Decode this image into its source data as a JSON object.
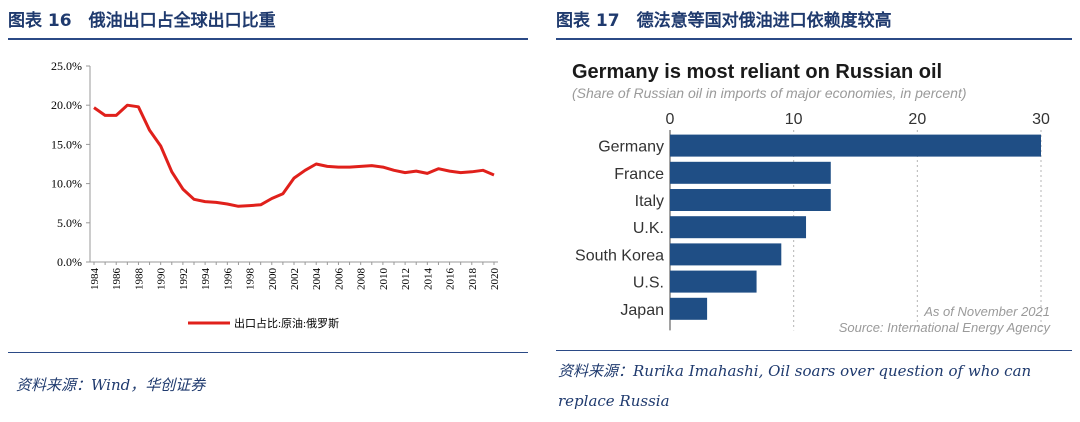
{
  "left_panel": {
    "title": "图表 16　俄油出口占全球出口比重",
    "source": "资料来源：Wind，华创证券"
  },
  "right_panel": {
    "title": "图表 17　德法意等国对俄油进口依赖度较高",
    "source_line1": "资料来源：Rurika Imahashi, Oil soars over question of who can",
    "source_line2": "replace Russia"
  },
  "colors": {
    "line": "#e0201b",
    "bar": "#1f4e85",
    "title": "#1f3a6e",
    "rule": "#2b4a86"
  },
  "chart_data": [
    {
      "type": "line",
      "title": "",
      "x": [
        "1984",
        "1985",
        "1986",
        "1987",
        "1988",
        "1989",
        "1990",
        "1991",
        "1992",
        "1993",
        "1994",
        "1995",
        "1996",
        "1997",
        "1998",
        "1999",
        "2000",
        "2001",
        "2002",
        "2003",
        "2004",
        "2005",
        "2006",
        "2007",
        "2008",
        "2009",
        "2010",
        "2011",
        "2012",
        "2013",
        "2014",
        "2015",
        "2016",
        "2017",
        "2018",
        "2019",
        "2020"
      ],
      "xticks": [
        "1984",
        "1986",
        "1988",
        "1990",
        "1992",
        "1994",
        "1996",
        "1998",
        "2000",
        "2002",
        "2004",
        "2006",
        "2008",
        "2010",
        "2012",
        "2014",
        "2016",
        "2018",
        "2020"
      ],
      "yticks": [
        "0.0%",
        "5.0%",
        "10.0%",
        "15.0%",
        "20.0%",
        "25.0%"
      ],
      "ylim": [
        0,
        25
      ],
      "series": [
        {
          "name": "出口占比:原油:俄罗斯",
          "values": [
            19.7,
            18.7,
            18.7,
            20.0,
            19.8,
            16.8,
            14.8,
            11.5,
            9.3,
            8.0,
            7.7,
            7.6,
            7.4,
            7.1,
            7.2,
            7.3,
            8.1,
            8.7,
            10.7,
            11.7,
            12.5,
            12.2,
            12.1,
            12.1,
            12.2,
            12.3,
            12.1,
            11.7,
            11.4,
            11.6,
            11.3,
            11.9,
            11.6,
            11.4,
            11.5,
            11.7,
            11.1
          ]
        }
      ]
    },
    {
      "type": "bar",
      "orientation": "horizontal",
      "title": "Germany is most reliant on Russian oil",
      "subtitle": "(Share of Russian oil in imports of major economies, in percent)",
      "categories": [
        "Germany",
        "France",
        "Italy",
        "U.K.",
        "South Korea",
        "U.S.",
        "Japan"
      ],
      "values": [
        30,
        13,
        13,
        11,
        9,
        7,
        3
      ],
      "xticks": [
        "0",
        "10",
        "20",
        "30"
      ],
      "xlim": [
        0,
        30
      ],
      "note_line1": "As of November 2021",
      "note_line2": "Source: International Energy Agency"
    }
  ]
}
